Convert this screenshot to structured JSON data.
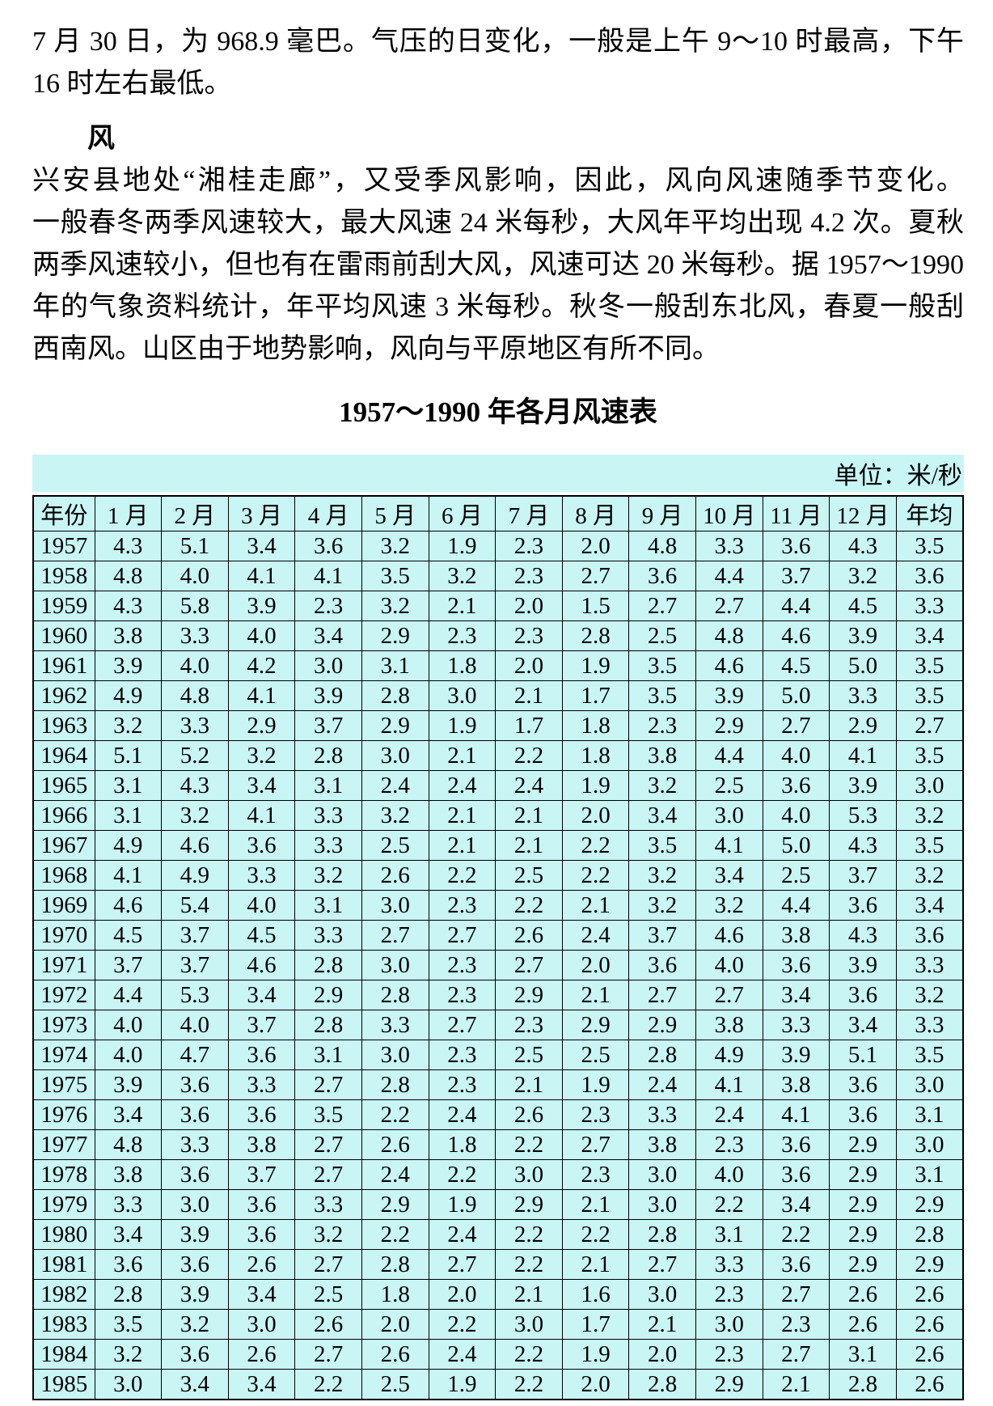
{
  "page": {
    "paragraph1_lines": [
      "7 月 30 日，为 968.9 毫巴。气压的日变化，一般是上午 9～10 时最高，下午",
      "16 时左右最低。"
    ],
    "section_heading": "风",
    "paragraph2_lines": [
      "兴安县地处“湘桂走廊”，又受季风影响，因此，风向风速随季节变化。",
      "一般春冬两季风速较大，最大风速 24 米每秒，大风年平均出现 4.2 次。夏秋",
      "两季风速较小，但也有在雷雨前刮大风，风速可达 20 米每秒。据 1957～1990",
      "年的气象资料统计，年平均风速 3 米每秒。秋冬一般刮东北风，春夏一般刮",
      "西南风。山区由于地势影响，风向与平原地区有所不同。"
    ],
    "table_title": "1957～1990 年各月风速表",
    "unit_label": "单位：米/秒"
  },
  "colors": {
    "table_background": "#c9f5f5",
    "text": "#000000",
    "page_background": "#ffffff"
  },
  "table": {
    "headers": [
      "年份",
      "1 月",
      "2 月",
      "3 月",
      "4 月",
      "5 月",
      "6 月",
      "7 月",
      "8 月",
      "9 月",
      "10 月",
      "11 月",
      "12 月",
      "年均"
    ],
    "rows": [
      {
        "year": "1957",
        "values": [
          "4.3",
          "5.1",
          "3.4",
          "3.6",
          "3.2",
          "1.9",
          "2.3",
          "2.0",
          "4.8",
          "3.3",
          "3.6",
          "4.3",
          "3.5"
        ]
      },
      {
        "year": "1958",
        "values": [
          "4.8",
          "4.0",
          "4.1",
          "4.1",
          "3.5",
          "3.2",
          "2.3",
          "2.7",
          "3.6",
          "4.4",
          "3.7",
          "3.2",
          "3.6"
        ]
      },
      {
        "year": "1959",
        "values": [
          "4.3",
          "5.8",
          "3.9",
          "2.3",
          "3.2",
          "2.1",
          "2.0",
          "1.5",
          "2.7",
          "2.7",
          "4.4",
          "4.5",
          "3.3"
        ]
      },
      {
        "year": "1960",
        "values": [
          "3.8",
          "3.3",
          "4.0",
          "3.4",
          "2.9",
          "2.3",
          "2.3",
          "2.8",
          "2.5",
          "4.8",
          "4.6",
          "3.9",
          "3.4"
        ]
      },
      {
        "year": "1961",
        "values": [
          "3.9",
          "4.0",
          "4.2",
          "3.0",
          "3.1",
          "1.8",
          "2.0",
          "1.9",
          "3.5",
          "4.6",
          "4.5",
          "5.0",
          "3.5"
        ]
      },
      {
        "year": "1962",
        "values": [
          "4.9",
          "4.8",
          "4.1",
          "3.9",
          "2.8",
          "3.0",
          "2.1",
          "1.7",
          "3.5",
          "3.9",
          "5.0",
          "3.3",
          "3.5"
        ]
      },
      {
        "year": "1963",
        "values": [
          "3.2",
          "3.3",
          "2.9",
          "3.7",
          "2.9",
          "1.9",
          "1.7",
          "1.8",
          "2.3",
          "2.9",
          "2.7",
          "2.9",
          "2.7"
        ]
      },
      {
        "year": "1964",
        "values": [
          "5.1",
          "5.2",
          "3.2",
          "2.8",
          "3.0",
          "2.1",
          "2.2",
          "1.8",
          "3.8",
          "4.4",
          "4.0",
          "4.1",
          "3.5"
        ]
      },
      {
        "year": "1965",
        "values": [
          "3.1",
          "4.3",
          "3.4",
          "3.1",
          "2.4",
          "2.4",
          "2.4",
          "1.9",
          "3.2",
          "2.5",
          "3.6",
          "3.9",
          "3.0"
        ]
      },
      {
        "year": "1966",
        "values": [
          "3.1",
          "3.2",
          "4.1",
          "3.3",
          "3.2",
          "2.1",
          "2.1",
          "2.0",
          "3.4",
          "3.0",
          "4.0",
          "5.3",
          "3.2"
        ]
      },
      {
        "year": "1967",
        "values": [
          "4.9",
          "4.6",
          "3.6",
          "3.3",
          "2.5",
          "2.1",
          "2.1",
          "2.2",
          "3.5",
          "4.1",
          "5.0",
          "4.3",
          "3.5"
        ]
      },
      {
        "year": "1968",
        "values": [
          "4.1",
          "4.9",
          "3.3",
          "3.2",
          "2.6",
          "2.2",
          "2.5",
          "2.2",
          "3.2",
          "3.4",
          "2.5",
          "3.7",
          "3.2"
        ]
      },
      {
        "year": "1969",
        "values": [
          "4.6",
          "5.4",
          "4.0",
          "3.1",
          "3.0",
          "2.3",
          "2.2",
          "2.1",
          "3.2",
          "3.2",
          "4.4",
          "3.6",
          "3.4"
        ]
      },
      {
        "year": "1970",
        "values": [
          "4.5",
          "3.7",
          "4.5",
          "3.3",
          "2.7",
          "2.7",
          "2.6",
          "2.4",
          "3.7",
          "4.6",
          "3.8",
          "4.3",
          "3.6"
        ]
      },
      {
        "year": "1971",
        "values": [
          "3.7",
          "3.7",
          "4.6",
          "2.8",
          "3.0",
          "2.3",
          "2.7",
          "2.0",
          "3.6",
          "4.0",
          "3.6",
          "3.9",
          "3.3"
        ]
      },
      {
        "year": "1972",
        "values": [
          "4.4",
          "5.3",
          "3.4",
          "2.9",
          "2.8",
          "2.3",
          "2.9",
          "2.1",
          "2.7",
          "2.7",
          "3.4",
          "3.6",
          "3.2"
        ]
      },
      {
        "year": "1973",
        "values": [
          "4.0",
          "4.0",
          "3.7",
          "2.8",
          "3.3",
          "2.7",
          "2.3",
          "2.9",
          "2.9",
          "3.8",
          "3.3",
          "3.4",
          "3.3"
        ]
      },
      {
        "year": "1974",
        "values": [
          "4.0",
          "4.7",
          "3.6",
          "3.1",
          "3.0",
          "2.3",
          "2.5",
          "2.5",
          "2.8",
          "4.9",
          "3.9",
          "5.1",
          "3.5"
        ]
      },
      {
        "year": "1975",
        "values": [
          "3.9",
          "3.6",
          "3.3",
          "2.7",
          "2.8",
          "2.3",
          "2.1",
          "1.9",
          "2.4",
          "4.1",
          "3.8",
          "3.6",
          "3.0"
        ]
      },
      {
        "year": "1976",
        "values": [
          "3.4",
          "3.6",
          "3.6",
          "3.5",
          "2.2",
          "2.4",
          "2.6",
          "2.3",
          "3.3",
          "2.4",
          "4.1",
          "3.6",
          "3.1"
        ]
      },
      {
        "year": "1977",
        "values": [
          "4.8",
          "3.3",
          "3.8",
          "2.7",
          "2.6",
          "1.8",
          "2.2",
          "2.7",
          "3.8",
          "2.3",
          "3.6",
          "2.9",
          "3.0"
        ]
      },
      {
        "year": "1978",
        "values": [
          "3.8",
          "3.6",
          "3.7",
          "2.7",
          "2.4",
          "2.2",
          "3.0",
          "2.3",
          "3.0",
          "4.0",
          "3.6",
          "2.9",
          "3.1"
        ]
      },
      {
        "year": "1979",
        "values": [
          "3.3",
          "3.0",
          "3.6",
          "3.3",
          "2.9",
          "1.9",
          "2.9",
          "2.1",
          "3.0",
          "2.2",
          "3.4",
          "2.9",
          "2.9"
        ]
      },
      {
        "year": "1980",
        "values": [
          "3.4",
          "3.9",
          "3.6",
          "3.2",
          "2.2",
          "2.4",
          "2.2",
          "2.2",
          "2.8",
          "3.1",
          "2.2",
          "2.9",
          "2.8"
        ]
      },
      {
        "year": "1981",
        "values": [
          "3.6",
          "3.6",
          "2.6",
          "2.7",
          "2.8",
          "2.7",
          "2.2",
          "2.1",
          "2.7",
          "3.3",
          "3.6",
          "2.9",
          "2.9"
        ]
      },
      {
        "year": "1982",
        "values": [
          "2.8",
          "3.9",
          "3.4",
          "2.5",
          "1.8",
          "2.0",
          "2.1",
          "1.6",
          "3.0",
          "2.3",
          "2.7",
          "2.6",
          "2.6"
        ]
      },
      {
        "year": "1983",
        "values": [
          "3.5",
          "3.2",
          "3.0",
          "2.6",
          "2.0",
          "2.2",
          "3.0",
          "1.7",
          "2.1",
          "3.0",
          "2.3",
          "2.6",
          "2.6"
        ]
      },
      {
        "year": "1984",
        "values": [
          "3.2",
          "3.6",
          "2.6",
          "2.7",
          "2.6",
          "2.4",
          "2.2",
          "1.9",
          "2.0",
          "2.3",
          "2.7",
          "3.1",
          "2.6"
        ]
      },
      {
        "year": "1985",
        "values": [
          "3.0",
          "3.4",
          "3.4",
          "2.2",
          "2.5",
          "1.9",
          "2.2",
          "2.0",
          "2.8",
          "2.9",
          "2.1",
          "2.8",
          "2.6"
        ]
      }
    ]
  }
}
